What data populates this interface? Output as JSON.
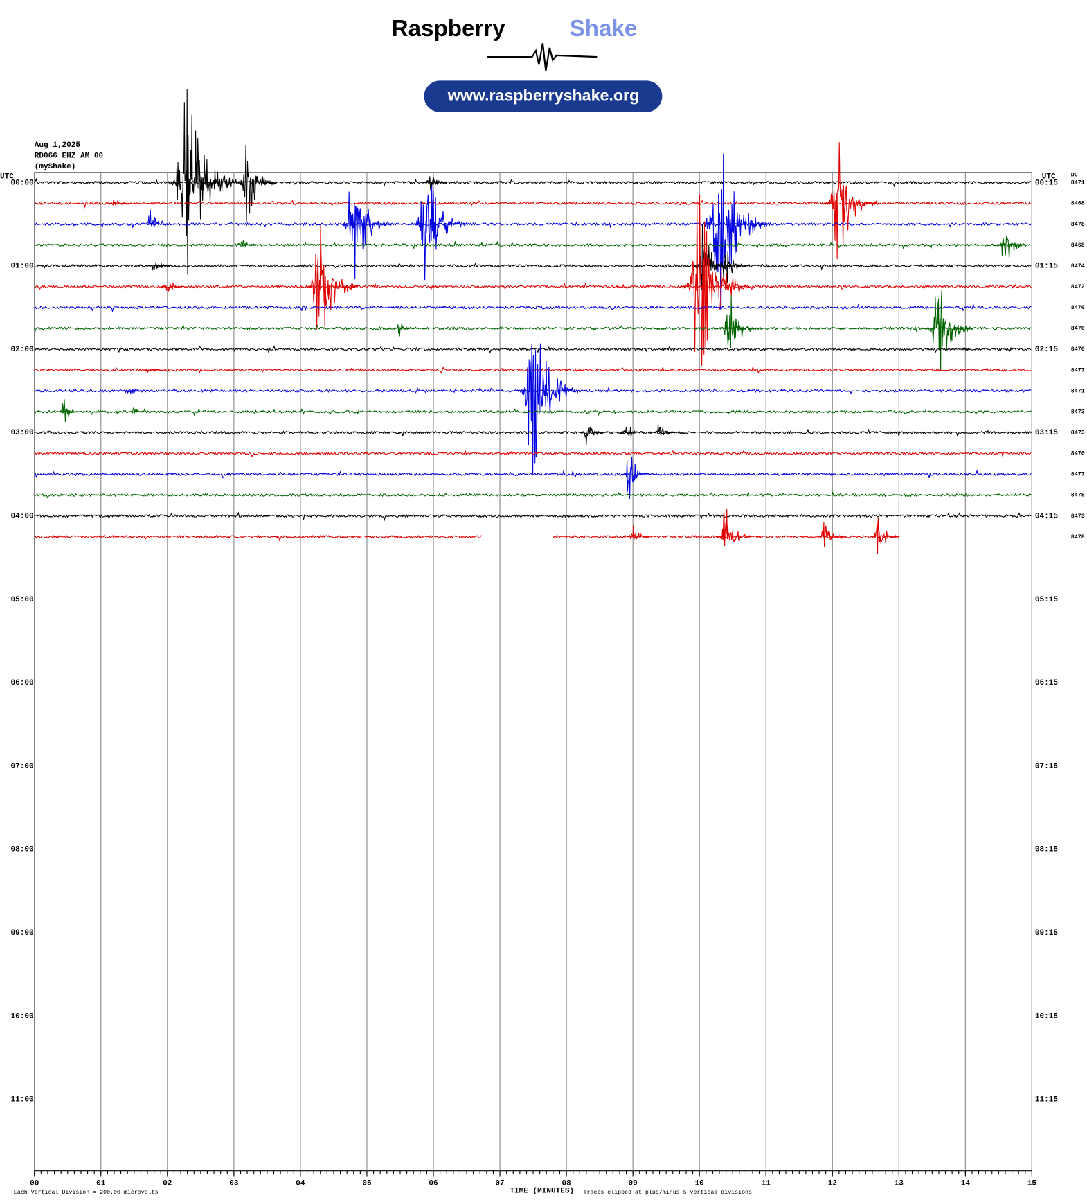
{
  "header": {
    "brand": "Raspberry",
    "brand_accent": "Shake",
    "url": "www.raspberryshake.org"
  },
  "chart_data": {
    "type": "helicorder",
    "date": "Aug 1,2025",
    "station": "RD066 EHZ AM 00",
    "source": "(myShake)",
    "left_axis_label": "UTC",
    "right_axis_label": "UTC",
    "dc_label": "DC",
    "xlabel": "TIME (MINUTES)",
    "footer_left": "Each Vertical Division =  200.00 microvolts",
    "footer_right": "Traces clipped at plus/minus 5 vertical divisions",
    "xlim": [
      0,
      15
    ],
    "xticks": [
      {
        "value": 0,
        "label": "00"
      },
      {
        "value": 1,
        "label": "01"
      },
      {
        "value": 2,
        "label": "02"
      },
      {
        "value": 3,
        "label": "03"
      },
      {
        "value": 4,
        "label": "04"
      },
      {
        "value": 5,
        "label": "05"
      },
      {
        "value": 6,
        "label": "06"
      },
      {
        "value": 7,
        "label": "07"
      },
      {
        "value": 8,
        "label": "08"
      },
      {
        "value": 9,
        "label": "09"
      },
      {
        "value": 10,
        "label": "10"
      },
      {
        "value": 11,
        "label": "11"
      },
      {
        "value": 12,
        "label": "12"
      },
      {
        "value": 13,
        "label": "13"
      },
      {
        "value": 14,
        "label": "14"
      },
      {
        "value": 15,
        "label": "15"
      }
    ],
    "hour_labels_left": [
      "00:00",
      "01:00",
      "02:00",
      "03:00",
      "04:00",
      "05:00",
      "06:00",
      "07:00",
      "08:00",
      "09:00",
      "10:00",
      "11:00"
    ],
    "hour_labels_right": [
      "00:15",
      "01:15",
      "02:15",
      "03:15",
      "04:15",
      "05:15",
      "06:15",
      "07:15",
      "08:15",
      "09:15",
      "10:15",
      "11:15"
    ],
    "colors": [
      "#000000",
      "#e00000",
      "#0000e0",
      "#006400"
    ],
    "traces": [
      {
        "dc": "8471",
        "segments": [
          [
            0,
            15
          ]
        ],
        "events": [
          {
            "minute": 2.3,
            "amplitude": 4.5
          },
          {
            "minute": 3.2,
            "amplitude": 2
          },
          {
            "minute": 5.95,
            "amplitude": 0.5
          }
        ]
      },
      {
        "dc": "8468",
        "segments": [
          [
            0,
            15
          ]
        ],
        "events": [
          {
            "minute": 1.2,
            "amplitude": 0.3
          },
          {
            "minute": 12.1,
            "amplitude": 3
          }
        ]
      },
      {
        "dc": "8478",
        "segments": [
          [
            0,
            15
          ]
        ],
        "events": [
          {
            "minute": 1.75,
            "amplitude": 0.7
          },
          {
            "minute": 4.8,
            "amplitude": 3
          },
          {
            "minute": 5.9,
            "amplitude": 3
          },
          {
            "minute": 10.3,
            "amplitude": 4.5
          }
        ]
      },
      {
        "dc": "8468",
        "segments": [
          [
            0,
            15
          ]
        ],
        "events": [
          {
            "minute": 3.1,
            "amplitude": 0.4
          },
          {
            "minute": 14.6,
            "amplitude": 1.2
          }
        ]
      },
      {
        "dc": "8474",
        "segments": [
          [
            0,
            15
          ]
        ],
        "events": [
          {
            "minute": 1.8,
            "amplitude": 0.5
          },
          {
            "minute": 10.05,
            "amplitude": 2
          },
          {
            "minute": 10.4,
            "amplitude": 1
          }
        ]
      },
      {
        "dc": "8472",
        "segments": [
          [
            0,
            15
          ]
        ],
        "events": [
          {
            "minute": 2,
            "amplitude": 0.5
          },
          {
            "minute": 4.3,
            "amplitude": 3
          },
          {
            "minute": 10,
            "amplitude": 4.5
          }
        ]
      },
      {
        "dc": "8476",
        "segments": [
          [
            0,
            15
          ]
        ],
        "events": []
      },
      {
        "dc": "8470",
        "segments": [
          [
            0,
            15
          ]
        ],
        "events": [
          {
            "minute": 5.5,
            "amplitude": 0.4
          },
          {
            "minute": 10.45,
            "amplitude": 2
          },
          {
            "minute": 13.6,
            "amplitude": 2.5
          }
        ]
      },
      {
        "dc": "8470",
        "segments": [
          [
            0,
            15
          ]
        ],
        "events": []
      },
      {
        "dc": "8477",
        "segments": [
          [
            0,
            15
          ]
        ],
        "events": [
          {
            "minute": 1.7,
            "amplitude": 0.2
          }
        ]
      },
      {
        "dc": "8471",
        "segments": [
          [
            0,
            15
          ]
        ],
        "events": [
          {
            "minute": 1.4,
            "amplitude": 0.4
          },
          {
            "minute": 7.5,
            "amplitude": 4
          }
        ]
      },
      {
        "dc": "8473",
        "segments": [
          [
            0,
            15
          ]
        ],
        "events": [
          {
            "minute": 0.45,
            "amplitude": 0.6
          },
          {
            "minute": 1.5,
            "amplitude": 0.2
          }
        ]
      },
      {
        "dc": "8473",
        "segments": [
          [
            0,
            15
          ]
        ],
        "events": [
          {
            "minute": 8.3,
            "amplitude": 0.6
          },
          {
            "minute": 8.9,
            "amplitude": 0.6
          },
          {
            "minute": 9.4,
            "amplitude": 0.5
          }
        ]
      },
      {
        "dc": "8470",
        "segments": [
          [
            0,
            15
          ]
        ],
        "events": []
      },
      {
        "dc": "8477",
        "segments": [
          [
            0,
            15
          ]
        ],
        "events": [
          {
            "minute": 8.95,
            "amplitude": 1.2
          }
        ]
      },
      {
        "dc": "8478",
        "segments": [
          [
            0,
            15
          ]
        ],
        "events": []
      },
      {
        "dc": "8473",
        "segments": [
          [
            0,
            15
          ]
        ],
        "events": []
      },
      {
        "dc": "8478",
        "segments": [
          [
            0,
            6.74
          ],
          [
            7.8,
            13
          ]
        ],
        "events": [
          {
            "minute": 9,
            "amplitude": 0.6
          },
          {
            "minute": 10.4,
            "amplitude": 1.5
          },
          {
            "minute": 11.9,
            "amplitude": 1
          },
          {
            "minute": 12.7,
            "amplitude": 1
          }
        ]
      }
    ]
  }
}
